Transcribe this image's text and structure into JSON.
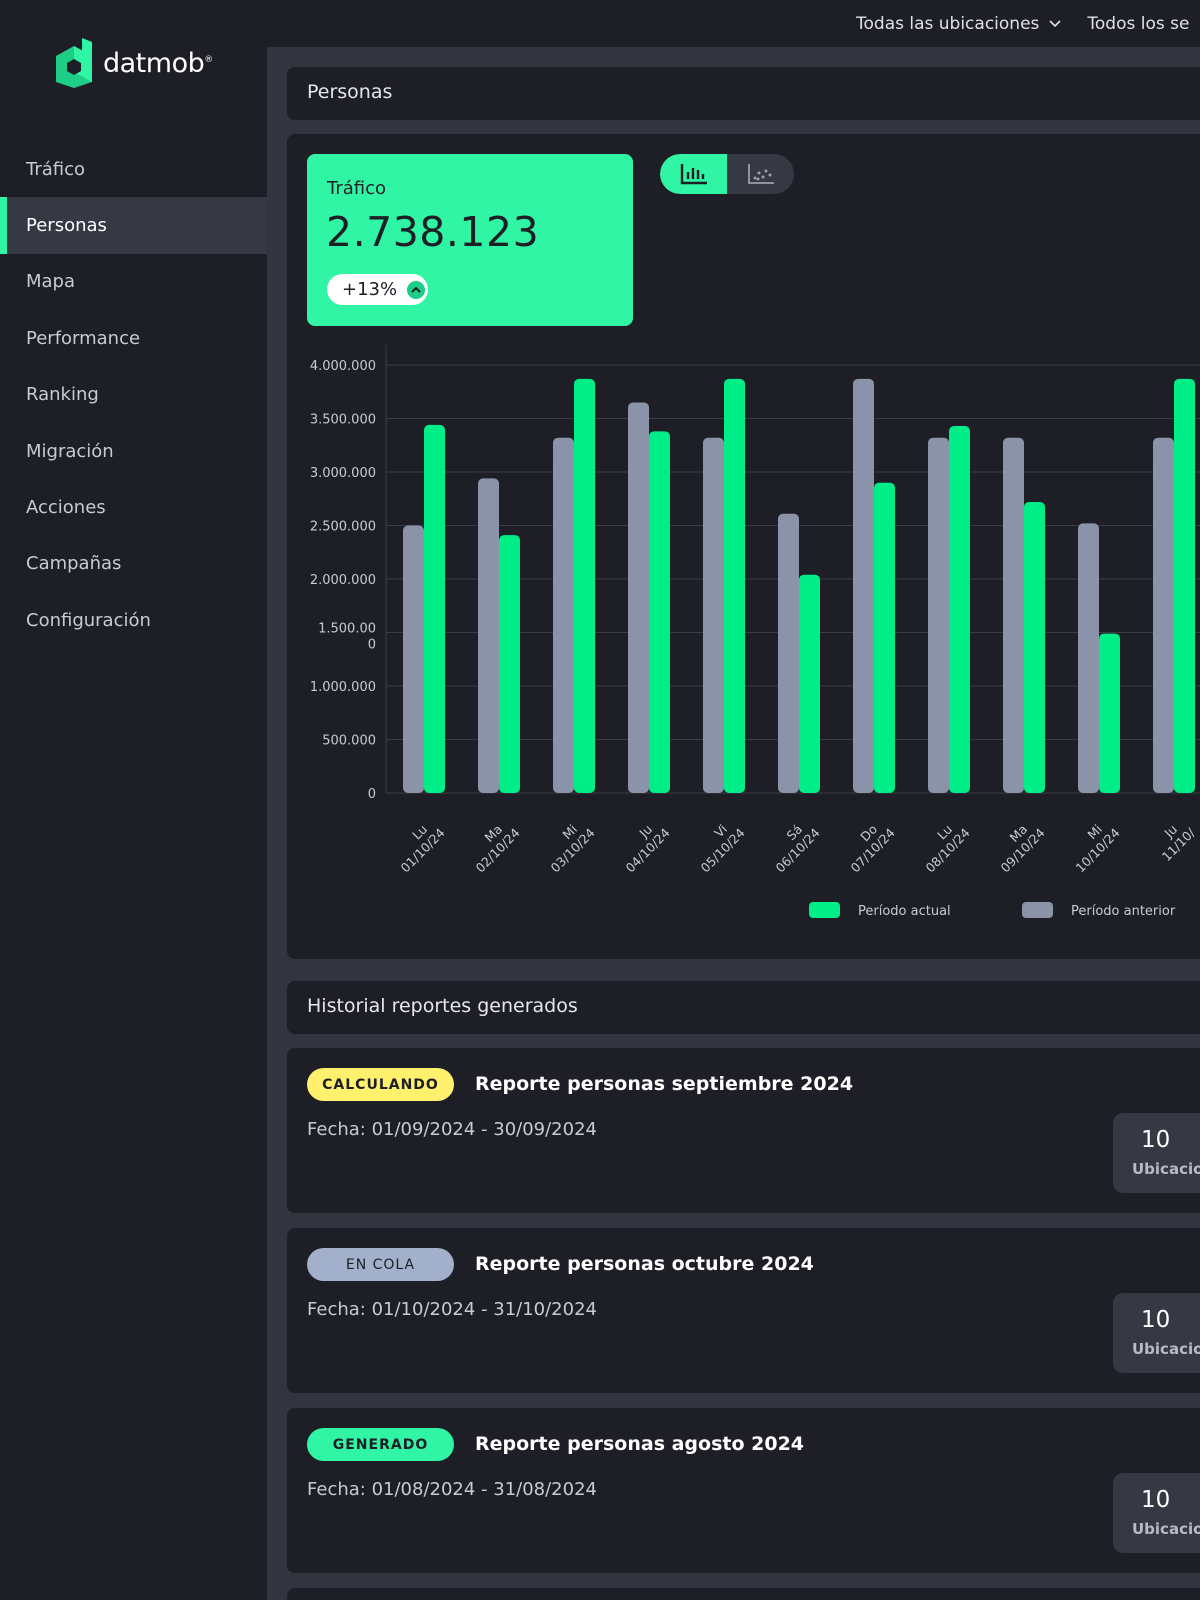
{
  "brand": {
    "name": "datmob",
    "mark": "®"
  },
  "sidebar": {
    "items": [
      {
        "label": "Tráfico"
      },
      {
        "label": "Personas"
      },
      {
        "label": "Mapa"
      },
      {
        "label": "Performance"
      },
      {
        "label": "Ranking"
      },
      {
        "label": "Migración"
      },
      {
        "label": "Acciones"
      },
      {
        "label": "Campañas"
      },
      {
        "label": "Configuración"
      }
    ],
    "active": "Personas"
  },
  "topbar": {
    "locations_filter": "Todas las ubicaciones",
    "second_filter": "Todos los se"
  },
  "section": {
    "title": "Personas"
  },
  "kpi": {
    "label": "Tráfico",
    "value": "2.738.123",
    "change": "+13%"
  },
  "view_toggle": {
    "options": [
      "bar-chart-icon",
      "scatter-chart-icon"
    ],
    "selected": "bar-chart-icon"
  },
  "colors": {
    "current": "#00ee88",
    "previous": "#8a93a8",
    "accent": "#2ff5a4"
  },
  "chart_data": {
    "type": "bar",
    "categories": [
      [
        "Lu",
        "01/10/24"
      ],
      [
        "Ma",
        "02/10/24"
      ],
      [
        "Mi",
        "03/10/24"
      ],
      [
        "Ju",
        "04/10/24"
      ],
      [
        "Vi",
        "05/10/24"
      ],
      [
        "Sá",
        "06/10/24"
      ],
      [
        "Do",
        "07/10/24"
      ],
      [
        "Lu",
        "08/10/24"
      ],
      [
        "Ma",
        "09/10/24"
      ],
      [
        "Mi",
        "10/10/24"
      ],
      [
        "Ju",
        "11/10/"
      ]
    ],
    "series": [
      {
        "name": "Período anterior",
        "values": [
          2500000,
          2940000,
          3320000,
          3650000,
          3320000,
          2610000,
          3870000,
          3320000,
          3320000,
          2520000,
          3320000
        ]
      },
      {
        "name": "Período actual",
        "values": [
          3440000,
          2410000,
          3870000,
          3380000,
          3870000,
          2040000,
          2900000,
          3430000,
          2720000,
          1490000,
          3870000
        ]
      }
    ],
    "ylim": [
      0,
      4000000
    ],
    "yticks": [
      "0",
      "500.000",
      "1.000.000",
      "1.500.00\n0",
      "2.000.000",
      "2.500.000",
      "3.000.000",
      "3.500.000",
      "4.000.000"
    ],
    "grid": true,
    "legend": "bottom-center"
  },
  "history": {
    "title": "Historial reportes generados",
    "reports": [
      {
        "status": "CALCULANDO",
        "title": "Reporte personas septiembre 2024",
        "date": "Fecha: 01/09/2024 - 30/09/2024",
        "count": "10",
        "count_label": "Ubicacio"
      },
      {
        "status": "EN COLA",
        "title": "Reporte personas octubre 2024",
        "date": "Fecha: 01/10/2024 - 31/10/2024",
        "count": "10",
        "count_label": "Ubicacio"
      },
      {
        "status": "GENERADO",
        "title": "Reporte personas agosto 2024",
        "date": "Fecha: 01/08/2024 - 31/08/2024",
        "count": "10",
        "count_label": "Ubicacio"
      }
    ]
  }
}
